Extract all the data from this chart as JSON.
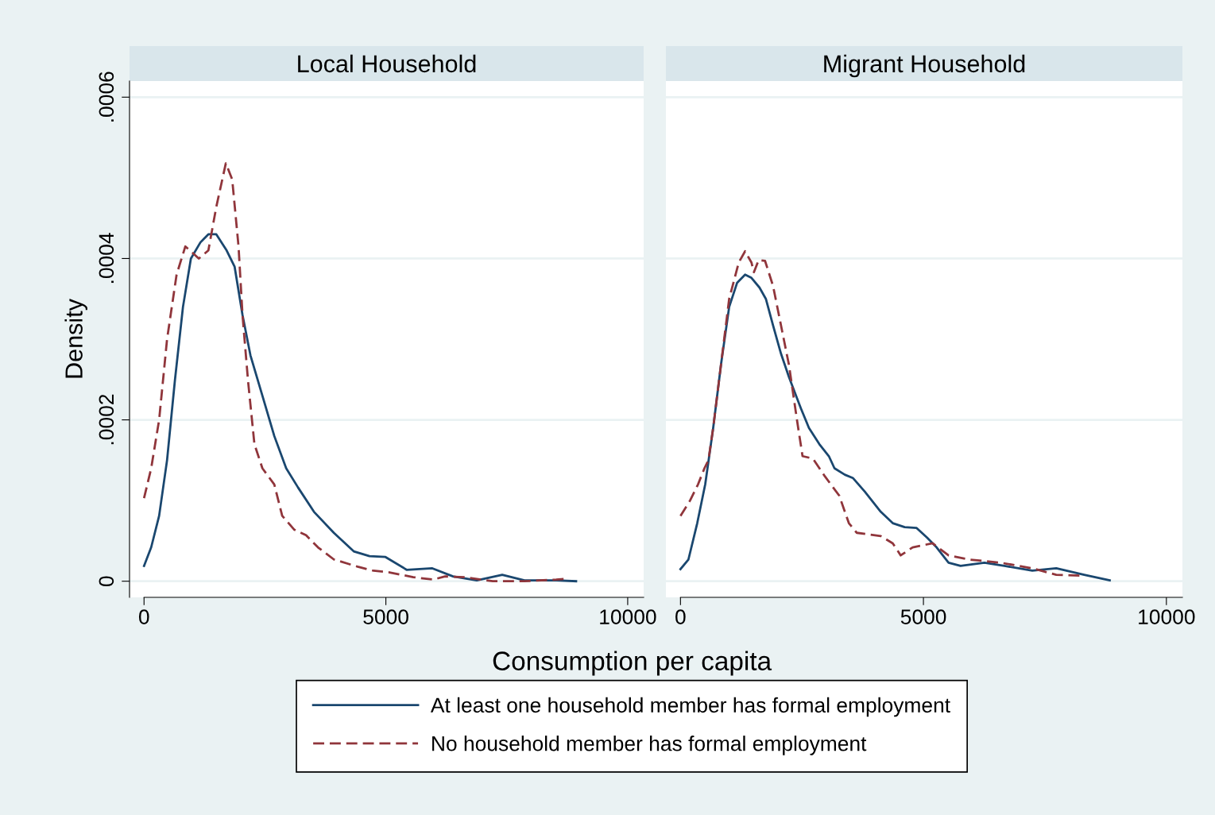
{
  "chart_data": [
    {
      "type": "line",
      "title": "Local Household",
      "xlabel": "Consumption per capita",
      "ylabel": "Density",
      "xlim": [
        -300,
        10330
      ],
      "ylim": [
        -2e-05,
        0.00062
      ],
      "xticks": [
        0,
        5000,
        10000
      ],
      "yticks": [
        {
          "value": 0,
          "label": "0"
        },
        {
          "value": 0.0002,
          "label": ".0002"
        },
        {
          "value": 0.0004,
          "label": ".0004"
        },
        {
          "value": 0.0006,
          "label": ".0006"
        }
      ],
      "grid": "y",
      "legend": "bottom",
      "series": [
        {
          "name": "At least one household member has formal employment",
          "color": "#1a476f",
          "line_style": "solid",
          "x": [
            0,
            148,
            312,
            476,
            640,
            805,
            969,
            1166,
            1330,
            1494,
            1708,
            1872,
            2036,
            2200,
            2447,
            2693,
            2939,
            3186,
            3514,
            3924,
            4335,
            4663,
            4992,
            5435,
            5961,
            6388,
            6880,
            7406,
            7865,
            8522,
            8933
          ],
          "values": [
            1.9e-05,
            4.2e-05,
            8.1e-05,
            0.00015,
            0.00025,
            0.00034,
            0.0004,
            0.00042,
            0.00043,
            0.00043,
            0.00041,
            0.00039,
            0.00033,
            0.00028,
            0.00023,
            0.00018,
            0.00014,
            0.000116,
            8.6e-05,
            6e-05,
            3.7e-05,
            3.1e-05,
            3e-05,
            1.4e-05,
            1.6e-05,
            6e-06,
            1e-06,
            8e-06,
            1e-06,
            1e-06,
            0
          ]
        },
        {
          "name": "No household member has formal employment",
          "color": "#90353b",
          "line_style": "dashed",
          "x": [
            0,
            148,
            312,
            476,
            673,
            854,
            1002,
            1133,
            1330,
            1494,
            1691,
            1823,
            1954,
            2036,
            2151,
            2282,
            2447,
            2693,
            2857,
            3103,
            3350,
            3596,
            3924,
            4417,
            4745,
            5074,
            5567,
            5977,
            6223,
            6634,
            7209,
            7865,
            8522,
            8736
          ],
          "values": [
            0.000103,
            0.00014,
            0.0002,
            0.0003,
            0.00038,
            0.000415,
            0.000407,
            0.0004,
            0.00041,
            0.000464,
            0.000518,
            0.000498,
            0.000415,
            0.00033,
            0.000248,
            0.00017,
            0.00014,
            0.00012,
            8.1e-05,
            6.4e-05,
            5.7e-05,
            4.2e-05,
            2.7e-05,
            1.8e-05,
            1.3e-05,
            1.1e-05,
            5e-06,
            2e-06,
            6e-06,
            5e-06,
            0,
            0,
            2e-06,
            3e-06
          ]
        }
      ]
    },
    {
      "type": "line",
      "title": "Migrant Household",
      "xlim": [
        -300,
        10330
      ],
      "ylim": [
        -2e-05,
        0.00062
      ],
      "xticks": [
        0,
        5000,
        10000
      ],
      "yticks": [
        {
          "value": 0,
          "label": null
        },
        {
          "value": 0.0002,
          "label": null
        },
        {
          "value": 0.0004,
          "label": null
        },
        {
          "value": 0.0006,
          "label": null
        }
      ],
      "grid": "y",
      "tick_labels": "x",
      "series": [
        {
          "color": "#1a476f",
          "line_style": "solid",
          "x": [
            0,
            164,
            345,
            509,
            673,
            837,
            1002,
            1166,
            1330,
            1461,
            1626,
            1757,
            1905,
            2069,
            2233,
            2479,
            2644,
            2857,
            3054,
            3169,
            3383,
            3547,
            3793,
            4122,
            4368,
            4614,
            4860,
            5074,
            5271,
            5517,
            5764,
            6256,
            6667,
            7241,
            7734,
            8309,
            8834
          ],
          "values": [
            1.5e-05,
            2.7e-05,
            7.2e-05,
            0.00012,
            0.00019,
            0.00027,
            0.00034,
            0.00037,
            0.00038,
            0.000376,
            0.000364,
            0.00035,
            0.000317,
            0.000282,
            0.000253,
            0.000214,
            0.00019,
            0.00017,
            0.000155,
            0.00014,
            0.000132,
            0.000128,
            0.000111,
            8.6e-05,
            7.2e-05,
            6.7e-05,
            6.6e-05,
            5.4e-05,
            4.2e-05,
            2.3e-05,
            1.9e-05,
            2.3e-05,
            1.9e-05,
            1.3e-05,
            1.6e-05,
            8e-06,
            1e-06
          ]
        },
        {
          "color": "#90353b",
          "line_style": "dashed",
          "x": [
            0,
            197,
            361,
            493,
            575,
            673,
            837,
            1002,
            1199,
            1330,
            1461,
            1511,
            1609,
            1741,
            1905,
            2069,
            2233,
            2397,
            2512,
            2726,
            2972,
            3268,
            3465,
            3629,
            4122,
            4368,
            4532,
            4778,
            5189,
            5517,
            5928,
            6585,
            7241,
            7734,
            8227
          ],
          "values": [
            8.1e-05,
            0.0001,
            0.00012,
            0.00014,
            0.00015,
            0.00019,
            0.00027,
            0.00035,
            0.000395,
            0.000409,
            0.000395,
            0.000383,
            0.000398,
            0.000397,
            0.000366,
            0.000317,
            0.000268,
            0.0002,
            0.000155,
            0.000152,
            0.00013,
            0.000106,
            7.2e-05,
            6e-05,
            5.6e-05,
            4.7e-05,
            3.2e-05,
            4.2e-05,
            4.7e-05,
            3.2e-05,
            2.7e-05,
            2.3e-05,
            1.6e-05,
            8e-06,
            7e-06
          ]
        }
      ]
    }
  ]
}
